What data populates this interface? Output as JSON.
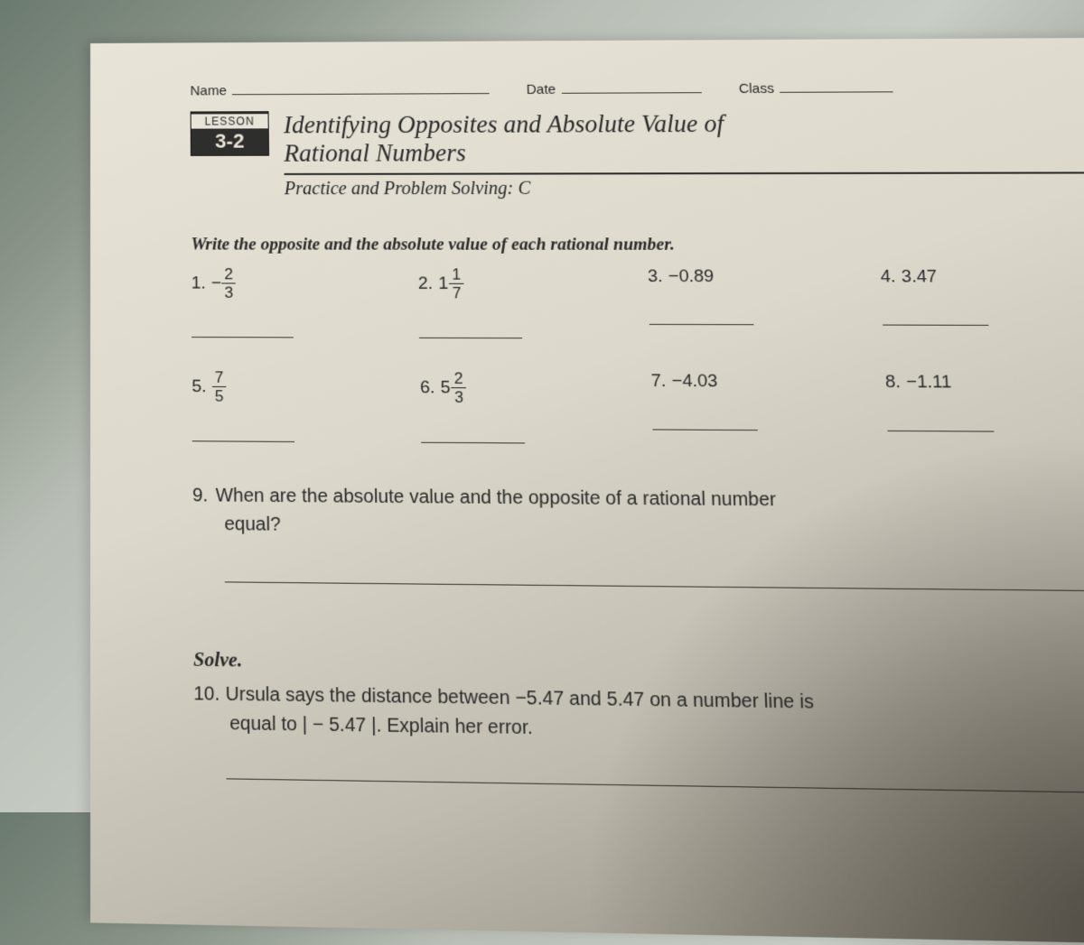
{
  "header": {
    "name_label": "Name",
    "date_label": "Date",
    "class_label": "Class"
  },
  "lesson": {
    "badge_top": "LESSON",
    "badge_num": "3-2",
    "title_line1": "Identifying Opposites and Absolute Value of",
    "title_line2": "Rational Numbers",
    "subtitle": "Practice and Problem Solving: C"
  },
  "instruction": "Write the opposite and the absolute value of each rational number.",
  "problems": [
    {
      "num": "1.",
      "prefix": "−",
      "whole": "",
      "frac_n": "2",
      "frac_d": "3",
      "plain": ""
    },
    {
      "num": "2.",
      "prefix": "",
      "whole": "1",
      "frac_n": "1",
      "frac_d": "7",
      "plain": ""
    },
    {
      "num": "3.",
      "prefix": "",
      "whole": "",
      "frac_n": "",
      "frac_d": "",
      "plain": "−0.89"
    },
    {
      "num": "4.",
      "prefix": "",
      "whole": "",
      "frac_n": "",
      "frac_d": "",
      "plain": "3.47"
    },
    {
      "num": "5.",
      "prefix": "",
      "whole": "",
      "frac_n": "7",
      "frac_d": "5",
      "plain": ""
    },
    {
      "num": "6.",
      "prefix": "",
      "whole": "5",
      "frac_n": "2",
      "frac_d": "3",
      "plain": ""
    },
    {
      "num": "7.",
      "prefix": "",
      "whole": "",
      "frac_n": "",
      "frac_d": "",
      "plain": "−4.03"
    },
    {
      "num": "8.",
      "prefix": "",
      "whole": "",
      "frac_n": "",
      "frac_d": "",
      "plain": "−1.11"
    }
  ],
  "q9": {
    "num": "9.",
    "text_a": "When are the absolute value and the opposite of a rational number",
    "text_b": "equal?"
  },
  "solve_heading": "Solve.",
  "q10": {
    "num": "10.",
    "text_a": "Ursula says the distance between −5.47 and 5.47 on a number line is",
    "text_b": "equal to | − 5.47 |. Explain her error."
  }
}
